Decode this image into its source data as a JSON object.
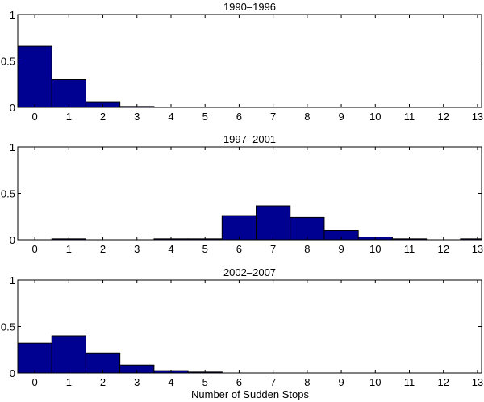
{
  "chart_data": [
    {
      "type": "bar",
      "title": "1990–1996",
      "categories": [
        0,
        1,
        2,
        3,
        4,
        5,
        6,
        7,
        8,
        9,
        10,
        11,
        12,
        13
      ],
      "values": [
        0.66,
        0.3,
        0.06,
        0.01,
        0,
        0,
        0,
        0,
        0,
        0,
        0,
        0,
        0,
        0
      ],
      "xlim": [
        -0.5,
        13.12
      ],
      "ylim": [
        0,
        1
      ],
      "yticks": [
        "0",
        "0.5",
        "1"
      ],
      "xlabel": "",
      "ylabel": "",
      "grid": false
    },
    {
      "type": "bar",
      "title": "1997–2001",
      "categories": [
        0,
        1,
        2,
        3,
        4,
        5,
        6,
        7,
        8,
        9,
        10,
        11,
        12,
        13
      ],
      "values": [
        0,
        0.01,
        0,
        0,
        0.01,
        0.01,
        0.26,
        0.365,
        0.24,
        0.1,
        0.03,
        0.01,
        0,
        0.01
      ],
      "xlim": [
        -0.5,
        13.12
      ],
      "ylim": [
        0,
        1
      ],
      "yticks": [
        "0",
        "0.5",
        "1"
      ],
      "xlabel": "",
      "ylabel": "",
      "grid": false
    },
    {
      "type": "bar",
      "title": "2002–2007",
      "categories": [
        0,
        1,
        2,
        3,
        4,
        5,
        6,
        7,
        8,
        9,
        10,
        11,
        12,
        13
      ],
      "values": [
        0.32,
        0.4,
        0.215,
        0.085,
        0.025,
        0.01,
        0,
        0,
        0,
        0,
        0,
        0,
        0,
        0
      ],
      "xlim": [
        -0.5,
        13.12
      ],
      "ylim": [
        0,
        1
      ],
      "yticks": [
        "0",
        "0.5",
        "1"
      ],
      "xlabel": "Number of Sudden Stops",
      "ylabel": "",
      "grid": false
    }
  ],
  "colors": {
    "bar_fill": "#000091",
    "bar_edge": "#000000",
    "axes": "#000000"
  }
}
